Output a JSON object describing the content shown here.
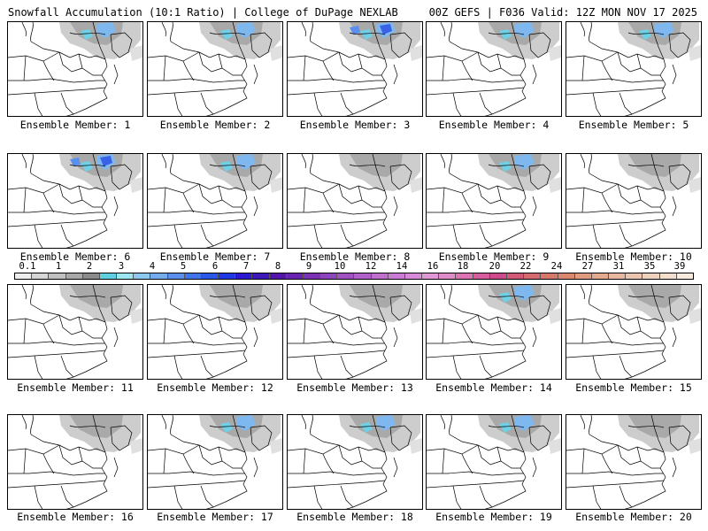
{
  "header": {
    "title": "Snowfall Accumulation (10:1 Ratio) | College of DuPage NEXLAB",
    "run_info": "00Z GEFS | F036 Valid: 12Z MON NOV 17 2025"
  },
  "colorbar": {
    "tick_labels": [
      "0.1",
      "1",
      "2",
      "3",
      "4",
      "5",
      "6",
      "7",
      "8",
      "9",
      "10",
      "12",
      "14",
      "16",
      "18",
      "20",
      "22",
      "24",
      "27",
      "31",
      "35",
      "39"
    ],
    "colors": [
      "#eeeeee",
      "#d6d6d6",
      "#c0c0c0",
      "#a8a8a8",
      "#8c8c8c",
      "#5fd0e0",
      "#9be6f0",
      "#8ec8f0",
      "#74acee",
      "#5a90ec",
      "#4074ea",
      "#2a58e8",
      "#1f3ae0",
      "#2b1ad2",
      "#3d1ab8",
      "#5216a8",
      "#6a22b0",
      "#7d32b6",
      "#8e44bc",
      "#a052c2",
      "#b060c8",
      "#c06ece",
      "#cc7cd4",
      "#d88ada",
      "#e098d6",
      "#e08cc8",
      "#dc74b4",
      "#d65c9e",
      "#ce4a8c",
      "#d05a78",
      "#d46a70",
      "#d87868",
      "#dc8870",
      "#e09a80",
      "#e4aa90",
      "#e8b8a0",
      "#ecc6b0",
      "#f0d2c0",
      "#f4dece",
      "#f8eadc"
    ]
  },
  "map_icons": [
    "state-boundary-map"
  ],
  "members": [
    {
      "label": "Ensemble Member: 1",
      "snow": "moderate"
    },
    {
      "label": "Ensemble Member: 2",
      "snow": "moderate"
    },
    {
      "label": "Ensemble Member: 3",
      "snow": "heavy"
    },
    {
      "label": "Ensemble Member: 4",
      "snow": "moderate"
    },
    {
      "label": "Ensemble Member: 5",
      "snow": "moderate"
    },
    {
      "label": "Ensemble Member: 6",
      "snow": "heavy"
    },
    {
      "label": "Ensemble Member: 7",
      "snow": "moderate"
    },
    {
      "label": "Ensemble Member: 8",
      "snow": "light"
    },
    {
      "label": "Ensemble Member: 9",
      "snow": "moderate"
    },
    {
      "label": "Ensemble Member: 10",
      "snow": "light"
    },
    {
      "label": "Ensemble Member: 11",
      "snow": "light"
    },
    {
      "label": "Ensemble Member: 12",
      "snow": "light"
    },
    {
      "label": "Ensemble Member: 13",
      "snow": "light"
    },
    {
      "label": "Ensemble Member: 14",
      "snow": "moderate"
    },
    {
      "label": "Ensemble Member: 15",
      "snow": "light"
    },
    {
      "label": "Ensemble Member: 16",
      "snow": "light"
    },
    {
      "label": "Ensemble Member: 17",
      "snow": "moderate"
    },
    {
      "label": "Ensemble Member: 18",
      "snow": "moderate"
    },
    {
      "label": "Ensemble Member: 19",
      "snow": "moderate"
    },
    {
      "label": "Ensemble Member: 20",
      "snow": "light"
    }
  ]
}
